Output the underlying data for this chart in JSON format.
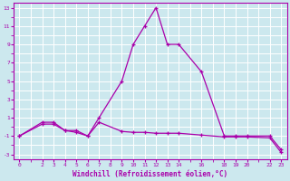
{
  "xlabel": "Windchill (Refroidissement éolien,°C)",
  "ylabel": "",
  "background_color": "#cce8ee",
  "grid_color": "#ffffff",
  "line_color": "#aa00aa",
  "xlim": [
    -0.5,
    23.5
  ],
  "ylim": [
    -3.5,
    13.5
  ],
  "xticks": [
    0,
    2,
    3,
    4,
    5,
    6,
    7,
    8,
    9,
    10,
    11,
    12,
    13,
    14,
    16,
    18,
    19,
    20,
    22,
    23
  ],
  "yticks": [
    -3,
    -1,
    1,
    3,
    5,
    7,
    9,
    11,
    13
  ],
  "xgrid_ticks": [
    0,
    1,
    2,
    3,
    4,
    5,
    6,
    7,
    8,
    9,
    10,
    11,
    12,
    13,
    14,
    15,
    16,
    17,
    18,
    19,
    20,
    21,
    22,
    23
  ],
  "ygrid_ticks": [
    -3,
    -2,
    -1,
    0,
    1,
    2,
    3,
    4,
    5,
    6,
    7,
    8,
    9,
    10,
    11,
    12,
    13
  ],
  "line1_x": [
    0,
    2,
    3,
    4,
    5,
    6,
    7,
    9,
    10,
    11,
    12,
    13,
    14,
    16,
    18,
    19,
    20,
    22,
    23
  ],
  "line1_y": [
    -1,
    0.5,
    0.5,
    -0.4,
    -0.4,
    -1,
    1,
    5,
    9,
    11,
    13,
    9,
    9,
    6,
    -1,
    -1,
    -1,
    -1,
    -2.5
  ],
  "line2_x": [
    0,
    2,
    3,
    4,
    5,
    6,
    7,
    9,
    10,
    11,
    12,
    13,
    14,
    16,
    18,
    19,
    20,
    22,
    23
  ],
  "line2_y": [
    -1,
    0.3,
    0.3,
    -0.4,
    -0.6,
    -1.0,
    0.5,
    -0.5,
    -0.6,
    -0.6,
    -0.7,
    -0.7,
    -0.7,
    -0.9,
    -1.1,
    -1.1,
    -1.1,
    -1.2,
    -2.8
  ]
}
